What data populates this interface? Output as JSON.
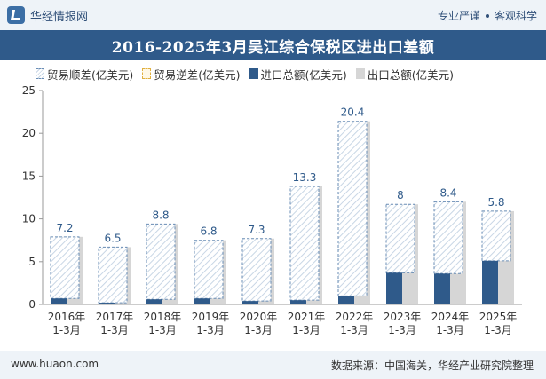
{
  "header": {
    "brand": "华经情报网",
    "tagline_1": "专业严谨",
    "tagline_2": "客观科学"
  },
  "title": "2016-2025年3月吴江综合保税区进出口差额",
  "legend": {
    "surplus": "贸易顺差(亿美元)",
    "deficit": "贸易逆差(亿美元)",
    "import": "进口总额(亿美元)",
    "export": "出口总额(亿美元)"
  },
  "footer": {
    "site": "www.huaon.com",
    "source": "数据来源：中国海关，华经产业研究院整理"
  },
  "colors": {
    "import": "#2f5a8a",
    "export": "#d6d6d6",
    "surplus_border": "#6a8db5",
    "surplus_hatch": "#c8d6e5",
    "label": "#2f5a8a"
  },
  "chart_data": {
    "type": "bar",
    "categories": [
      "2016年\n1-3月",
      "2017年\n1-3月",
      "2018年\n1-3月",
      "2019年\n1-3月",
      "2020年\n1-3月",
      "2021年\n1-3月",
      "2022年\n1-3月",
      "2023年\n1-3月",
      "2024年\n1-3月",
      "2025年\n1-3月"
    ],
    "series": [
      {
        "name": "贸易顺差(亿美元)",
        "values": [
          7.2,
          6.5,
          8.8,
          6.8,
          7.3,
          13.3,
          20.4,
          8,
          8.4,
          5.8
        ]
      },
      {
        "name": "贸易逆差(亿美元)",
        "values": [
          0,
          0,
          0,
          0,
          0,
          0,
          0,
          0,
          0,
          0
        ]
      },
      {
        "name": "进口总额(亿美元)",
        "values": [
          0.7,
          0.2,
          0.6,
          0.7,
          0.4,
          0.5,
          1.0,
          3.7,
          3.6,
          5.1
        ]
      },
      {
        "name": "出口总额(亿美元)",
        "values": [
          7.9,
          6.7,
          9.4,
          7.5,
          7.7,
          13.8,
          21.4,
          11.7,
          12.0,
          10.9
        ]
      }
    ],
    "data_labels": [
      "7.2",
      "6.5",
      "8.8",
      "6.8",
      "7.3",
      "13.3",
      "20.4",
      "8",
      "8.4",
      "5.8"
    ],
    "yticks": [
      "0",
      "5",
      "10",
      "15",
      "20",
      "25"
    ],
    "ylim": [
      0,
      25
    ],
    "grid": false,
    "legend_position": "top"
  }
}
